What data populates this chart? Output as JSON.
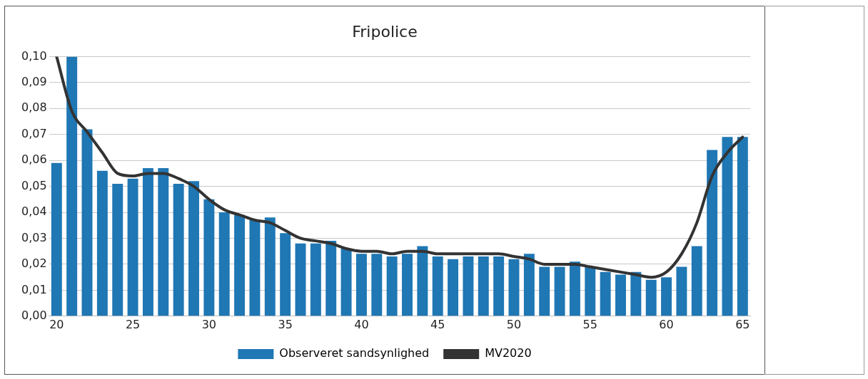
{
  "chart_data": {
    "type": "bar",
    "title": "Fripolice",
    "categories": [
      "20",
      null,
      null,
      null,
      null,
      "25",
      null,
      null,
      null,
      null,
      "30",
      null,
      null,
      null,
      null,
      "35",
      null,
      null,
      null,
      null,
      "40",
      null,
      null,
      null,
      null,
      "45",
      null,
      null,
      null,
      null,
      "50",
      null,
      null,
      null,
      null,
      "55",
      null,
      null,
      null,
      null,
      "60",
      null,
      null,
      null,
      null,
      "65"
    ],
    "series": [
      {
        "name": "Observeret sandsynlighed",
        "color": "#1f77b4",
        "values": [
          0.059,
          0.1,
          0.072,
          0.056,
          0.051,
          0.053,
          0.057,
          0.057,
          0.051,
          0.052,
          0.045,
          0.04,
          0.039,
          0.037,
          0.038,
          0.032,
          0.028,
          0.028,
          0.029,
          0.026,
          0.024,
          0.024,
          0.023,
          0.024,
          0.027,
          0.023,
          0.022,
          0.023,
          0.023,
          0.023,
          0.022,
          0.024,
          0.019,
          0.019,
          0.021,
          0.019,
          0.017,
          0.016,
          0.017,
          0.014,
          0.015,
          0.019,
          0.027,
          0.064,
          0.069,
          0.069
        ]
      },
      {
        "name": "MV2020",
        "type": "line",
        "color": "#333333",
        "values": [
          0.1,
          0.079,
          0.071,
          0.063,
          0.055,
          0.054,
          0.055,
          0.055,
          0.053,
          0.05,
          0.045,
          0.041,
          0.039,
          0.037,
          0.036,
          0.033,
          0.03,
          0.029,
          0.028,
          0.026,
          0.025,
          0.025,
          0.024,
          0.025,
          0.025,
          0.024,
          0.024,
          0.024,
          0.024,
          0.024,
          0.023,
          0.022,
          0.02,
          0.02,
          0.02,
          0.019,
          0.018,
          0.017,
          0.016,
          0.015,
          0.017,
          0.024,
          0.036,
          0.054,
          0.063,
          0.069
        ]
      }
    ],
    "ylim": [
      0,
      0.1
    ],
    "yticks": [
      {
        "value": 0,
        "label": "0,00"
      },
      {
        "value": 0.01,
        "label": "0,01"
      },
      {
        "value": 0.02,
        "label": "0,02"
      },
      {
        "value": 0.03,
        "label": "0,03"
      },
      {
        "value": 0.04,
        "label": "0,04"
      },
      {
        "value": 0.05,
        "label": "0,05"
      },
      {
        "value": 0.06,
        "label": "0,06"
      },
      {
        "value": 0.07,
        "label": "0,07"
      },
      {
        "value": 0.08,
        "label": "0,08"
      },
      {
        "value": 0.09,
        "label": "0,09"
      },
      {
        "value": 0.1,
        "label": "0,10"
      }
    ],
    "grid": "y",
    "legend": "bottom",
    "marker": "none"
  }
}
